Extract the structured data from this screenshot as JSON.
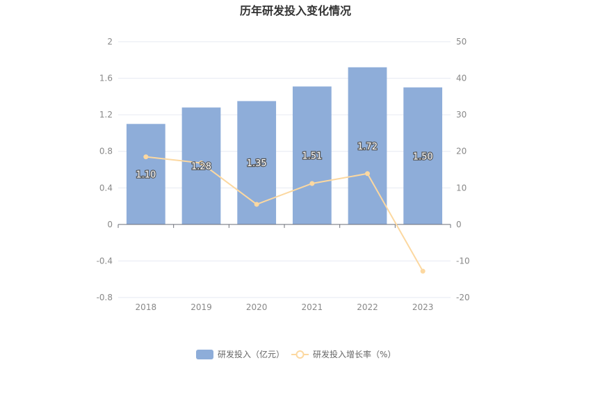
{
  "chart_data": {
    "type": "bar",
    "title": "历年研发投入变化情况",
    "categories": [
      "2018",
      "2019",
      "2020",
      "2021",
      "2022",
      "2023"
    ],
    "series": [
      {
        "name": "研发投入（亿元）",
        "type": "bar",
        "axis": "left",
        "color": "#8eadd9",
        "values": [
          1.1,
          1.28,
          1.35,
          1.51,
          1.72,
          1.5
        ],
        "labels": [
          "1.10",
          "1.28",
          "1.35",
          "1.51",
          "1.72",
          "1.50"
        ]
      },
      {
        "name": "研发投入增长率（%）",
        "type": "line",
        "axis": "right",
        "color": "#fcd8a0",
        "values": [
          18.5,
          16.8,
          5.5,
          11.2,
          13.9,
          -12.8
        ]
      }
    ],
    "y_left": {
      "range": [
        -0.8,
        2
      ],
      "ticks": [
        "-0.8",
        "-0.4",
        "0",
        "0.4",
        "0.8",
        "1.2",
        "1.6",
        "2"
      ]
    },
    "y_right": {
      "range": [
        -20,
        50
      ],
      "ticks": [
        "-20",
        "-10",
        "0",
        "10",
        "20",
        "30",
        "40",
        "50"
      ]
    },
    "grid": true,
    "legend_position": "bottom"
  }
}
